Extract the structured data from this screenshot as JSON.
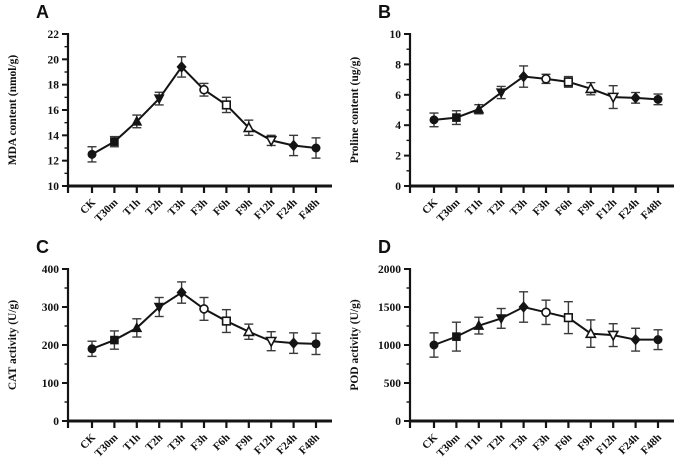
{
  "figure": {
    "background": "#ffffff",
    "line_color": "#141414",
    "error_color": "#3a3a3a",
    "text_color": "#111111"
  },
  "categories": [
    "CK",
    "T30m",
    "T1h",
    "T2h",
    "T3h",
    "F3h",
    "F6h",
    "F9h",
    "F12h",
    "F24h",
    "F48h"
  ],
  "marker_sequence": [
    "circle-filled",
    "square-filled",
    "triangle-up-filled",
    "triangle-down-filled",
    "diamond-filled",
    "circle-open",
    "square-open",
    "triangle-up-open",
    "triangle-down-open",
    "diamond-filled",
    "circle-filled"
  ],
  "chart_data": [
    {
      "panel": "A",
      "type": "line",
      "title": "",
      "xlabel": "",
      "ylabel": "MDA content (nmol/g)",
      "categories": [
        "CK",
        "T30m",
        "T1h",
        "T2h",
        "T3h",
        "F3h",
        "F6h",
        "F9h",
        "F12h",
        "F24h",
        "F48h"
      ],
      "values": [
        12.5,
        13.5,
        15.1,
        16.9,
        19.4,
        17.6,
        16.4,
        14.6,
        13.6,
        13.2,
        13.0
      ],
      "errors": [
        0.6,
        0.4,
        0.5,
        0.5,
        0.8,
        0.5,
        0.6,
        0.6,
        0.4,
        0.8,
        0.8
      ],
      "ylim": [
        10,
        22
      ],
      "yticks": [
        10,
        12,
        14,
        16,
        18,
        20,
        22
      ],
      "minor_ticks": true,
      "grid": false,
      "legend": "none"
    },
    {
      "panel": "B",
      "type": "line",
      "title": "",
      "xlabel": "",
      "ylabel": "Proline content (ug/g)",
      "categories": [
        "CK",
        "T30m",
        "T1h",
        "T2h",
        "T3h",
        "F3h",
        "F6h",
        "F9h",
        "F12h",
        "F24h",
        "F48h"
      ],
      "values": [
        4.35,
        4.5,
        5.05,
        6.15,
        7.2,
        7.05,
        6.85,
        6.4,
        5.85,
        5.8,
        5.7
      ],
      "errors": [
        0.45,
        0.45,
        0.3,
        0.4,
        0.7,
        0.3,
        0.35,
        0.4,
        0.75,
        0.35,
        0.35
      ],
      "ylim": [
        0,
        10
      ],
      "yticks": [
        0,
        2,
        4,
        6,
        8,
        10
      ],
      "minor_ticks": true,
      "grid": false,
      "legend": "none"
    },
    {
      "panel": "C",
      "type": "line",
      "title": "",
      "xlabel": "",
      "ylabel": "CAT activity (U/g)",
      "categories": [
        "CK",
        "T30m",
        "T1h",
        "T2h",
        "T3h",
        "F3h",
        "F6h",
        "F9h",
        "F12h",
        "F24h",
        "F48h"
      ],
      "values": [
        190,
        213,
        245,
        300,
        338,
        295,
        263,
        235,
        210,
        205,
        203
      ],
      "errors": [
        20,
        24,
        24,
        25,
        28,
        30,
        30,
        20,
        25,
        27,
        28
      ],
      "ylim": [
        0,
        400
      ],
      "yticks": [
        0,
        100,
        200,
        300,
        400
      ],
      "minor_ticks": true,
      "grid": false,
      "legend": "none"
    },
    {
      "panel": "D",
      "type": "line",
      "title": "",
      "xlabel": "",
      "ylabel": "POD activity (U/g)",
      "categories": [
        "CK",
        "T30m",
        "T1h",
        "T2h",
        "T3h",
        "F3h",
        "F6h",
        "F9h",
        "F12h",
        "F24h",
        "F48h"
      ],
      "values": [
        1000,
        1110,
        1255,
        1350,
        1500,
        1430,
        1360,
        1150,
        1130,
        1070,
        1070
      ],
      "errors": [
        160,
        190,
        110,
        130,
        200,
        160,
        210,
        180,
        150,
        150,
        130
      ],
      "ylim": [
        0,
        2000
      ],
      "yticks": [
        0,
        500,
        1000,
        1500,
        2000
      ],
      "minor_ticks": true,
      "grid": false,
      "legend": "none"
    }
  ]
}
